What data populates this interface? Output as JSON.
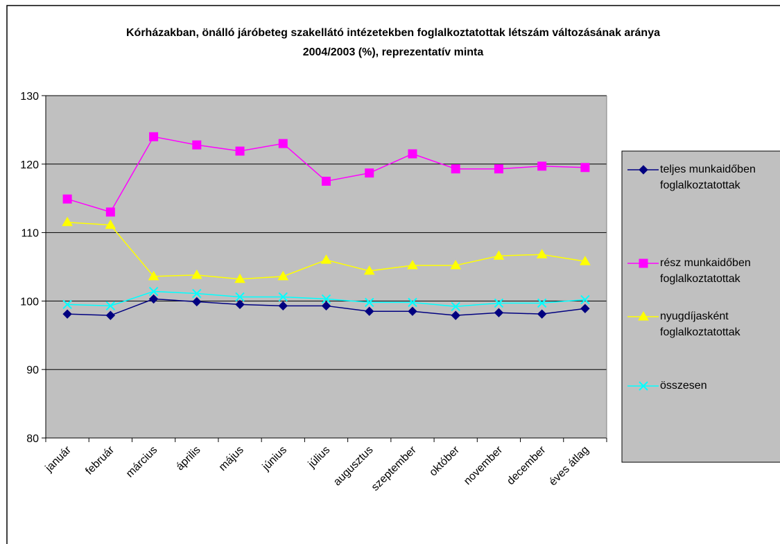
{
  "chart_data": {
    "type": "line",
    "title": "Kórházakban, önálló járóbeteg szakellátó intézetekben foglalkoztatottak létszám változásának aránya 2004/2003 (%), reprezentatív minta",
    "categories": [
      "január",
      "február",
      "március",
      "április",
      "május",
      "június",
      "július",
      "augusztus",
      "szeptember",
      "október",
      "november",
      "december",
      "éves átlag"
    ],
    "ylim": [
      80,
      130
    ],
    "yticks": [
      80,
      90,
      100,
      110,
      120,
      130
    ],
    "grid": true,
    "series": [
      {
        "name": "teljes munkaidőben foglalkoztatottak",
        "color": "#000080",
        "marker": "diamond",
        "values": [
          98.1,
          97.9,
          100.3,
          99.9,
          99.5,
          99.3,
          99.3,
          98.5,
          98.5,
          97.9,
          98.3,
          98.1,
          98.9
        ]
      },
      {
        "name": "rész munkaidőben foglalkoztatottak",
        "color": "#ff00ff",
        "marker": "square",
        "values": [
          114.9,
          113.0,
          124.0,
          122.8,
          121.9,
          123.0,
          117.5,
          118.7,
          121.5,
          119.3,
          119.3,
          119.7,
          119.5
        ]
      },
      {
        "name": "nyugdíjasként foglalkoztatottak",
        "color": "#ffff00",
        "marker": "triangle",
        "values": [
          111.5,
          111.1,
          103.6,
          103.8,
          103.2,
          103.6,
          106.0,
          104.4,
          105.2,
          105.2,
          106.6,
          106.8,
          105.8
        ]
      },
      {
        "name": "összesen",
        "color": "#00ffff",
        "marker": "x",
        "values": [
          99.5,
          99.3,
          101.4,
          101.1,
          100.6,
          100.6,
          100.3,
          99.8,
          99.8,
          99.2,
          99.7,
          99.7,
          100.2
        ]
      }
    ]
  }
}
